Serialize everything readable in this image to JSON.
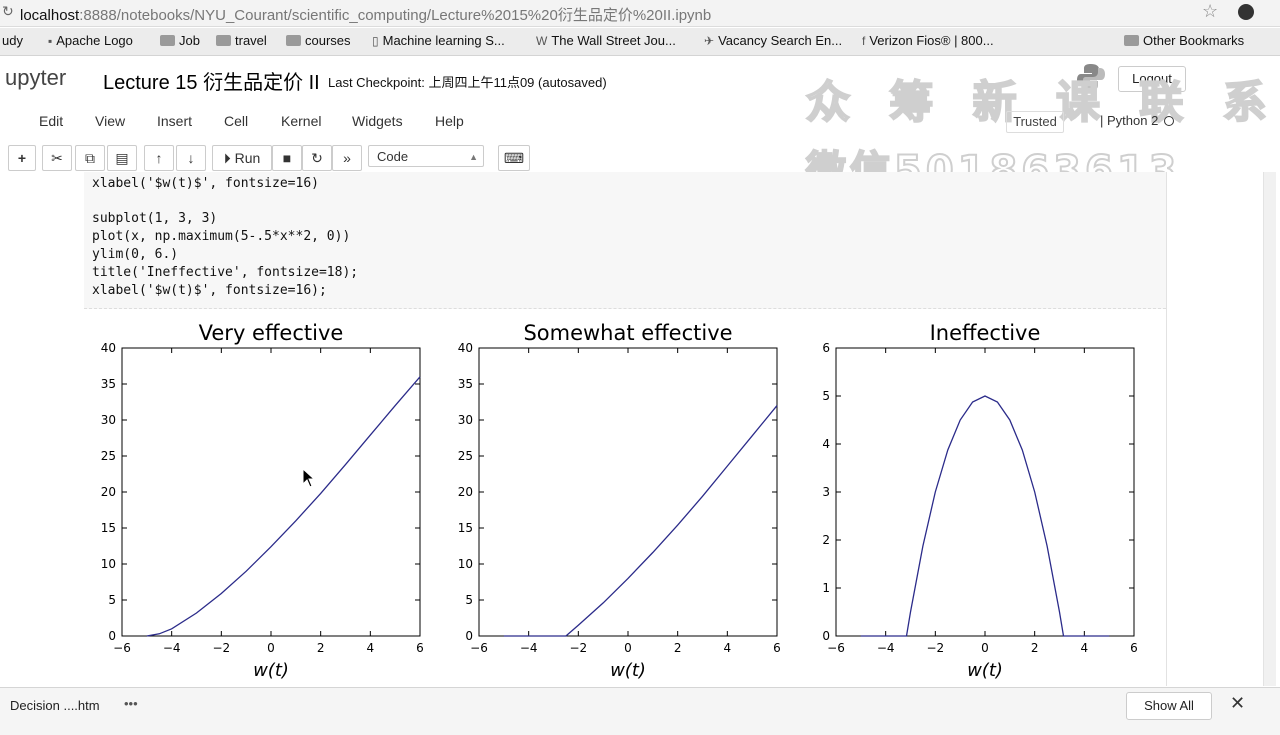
{
  "browser": {
    "url_host": "localhost",
    "url_rest": ":8888/notebooks/NYU_Courant/scientific_computing/Lecture%2015%20衍生品定价%20II.ipynb",
    "bookmarks": [
      {
        "label": "udy",
        "kind": "folder"
      },
      {
        "label": "Apache Logo",
        "kind": "page"
      },
      {
        "label": "Job",
        "kind": "folder"
      },
      {
        "label": "travel",
        "kind": "folder"
      },
      {
        "label": "courses",
        "kind": "folder"
      },
      {
        "label": "Machine learning S...",
        "kind": "page"
      },
      {
        "label": "The Wall Street Jou...",
        "kind": "page"
      },
      {
        "label": "Vacancy Search En...",
        "kind": "page"
      },
      {
        "label": "Verizon Fios® | 800...",
        "kind": "page"
      },
      {
        "label": "Other Bookmarks",
        "kind": "folder"
      }
    ]
  },
  "header": {
    "logo_text": "upyter",
    "notebook_title": "Lecture 15 衍生品定价 II",
    "checkpoint": "Last Checkpoint: 上周四上午11点09   (autosaved)",
    "logout_label": "Logout",
    "watermark_line1": "众 筹 新 课 联 系",
    "watermark_line2": "微信501863613"
  },
  "menu": {
    "items": [
      "Edit",
      "View",
      "Insert",
      "Cell",
      "Kernel",
      "Widgets",
      "Help"
    ],
    "trusted_label": "Trusted",
    "kernel_label": "Python 2"
  },
  "toolbar": {
    "run_label": "Run",
    "cell_type": "Code"
  },
  "code_cell": {
    "lines": [
      "xlabel('$w(t)$', fontsize=16)",
      "",
      "subplot(1, 3, 3)",
      "plot(x, np.maximum(5-.5*x**2, 0))",
      "ylim(0, 6.)",
      "title('Ineffective', fontsize=18);",
      "xlabel('$w(t)$', fontsize=16);"
    ]
  },
  "chart_data": [
    {
      "type": "line",
      "title": "Very effective",
      "xlabel": "w(t)",
      "ylabel": "",
      "xlim": [
        -6,
        6
      ],
      "ylim": [
        0,
        40
      ],
      "xticks": [
        -6,
        -4,
        -2,
        0,
        2,
        4,
        6
      ],
      "yticks": [
        0,
        5,
        10,
        15,
        20,
        25,
        30,
        35,
        40
      ],
      "x": [
        -5,
        -4.5,
        -4,
        -3,
        -2,
        -1,
        0,
        1,
        2,
        3,
        4,
        5,
        6
      ],
      "y": [
        0,
        0.3,
        1,
        3.2,
        5.9,
        9.0,
        12.4,
        16.0,
        19.8,
        23.8,
        27.9,
        32.0,
        36.0
      ],
      "grid": false
    },
    {
      "type": "line",
      "title": "Somewhat effective",
      "xlabel": "w(t)",
      "ylabel": "",
      "xlim": [
        -6,
        6
      ],
      "ylim": [
        0,
        40
      ],
      "xticks": [
        -6,
        -4,
        -2,
        0,
        2,
        4,
        6
      ],
      "yticks": [
        0,
        5,
        10,
        15,
        20,
        25,
        30,
        35,
        40
      ],
      "x": [
        -5,
        -2.5,
        -2,
        -1,
        0,
        1,
        2,
        3,
        4,
        5,
        6
      ],
      "y": [
        0,
        0,
        1.5,
        4.6,
        8.0,
        11.6,
        15.4,
        19.4,
        23.6,
        27.8,
        32.0
      ],
      "grid": false
    },
    {
      "type": "line",
      "title": "Ineffective",
      "xlabel": "w(t)",
      "ylabel": "",
      "xlim": [
        -6,
        6
      ],
      "ylim": [
        0,
        6
      ],
      "xticks": [
        -6,
        -4,
        -2,
        0,
        2,
        4,
        6
      ],
      "yticks": [
        0,
        1,
        2,
        3,
        4,
        5,
        6
      ],
      "x": [
        -5,
        -3.16,
        -3,
        -2.5,
        -2,
        -1.5,
        -1,
        -0.5,
        0,
        0.5,
        1,
        1.5,
        2,
        2.5,
        3,
        3.16,
        5
      ],
      "y": [
        0,
        0,
        0.5,
        1.875,
        3.0,
        3.875,
        4.5,
        4.875,
        5.0,
        4.875,
        4.5,
        3.875,
        3.0,
        1.875,
        0.5,
        0,
        0
      ],
      "grid": false
    }
  ],
  "downloads": {
    "file_label": "Decision ....htm",
    "show_all_label": "Show All"
  }
}
